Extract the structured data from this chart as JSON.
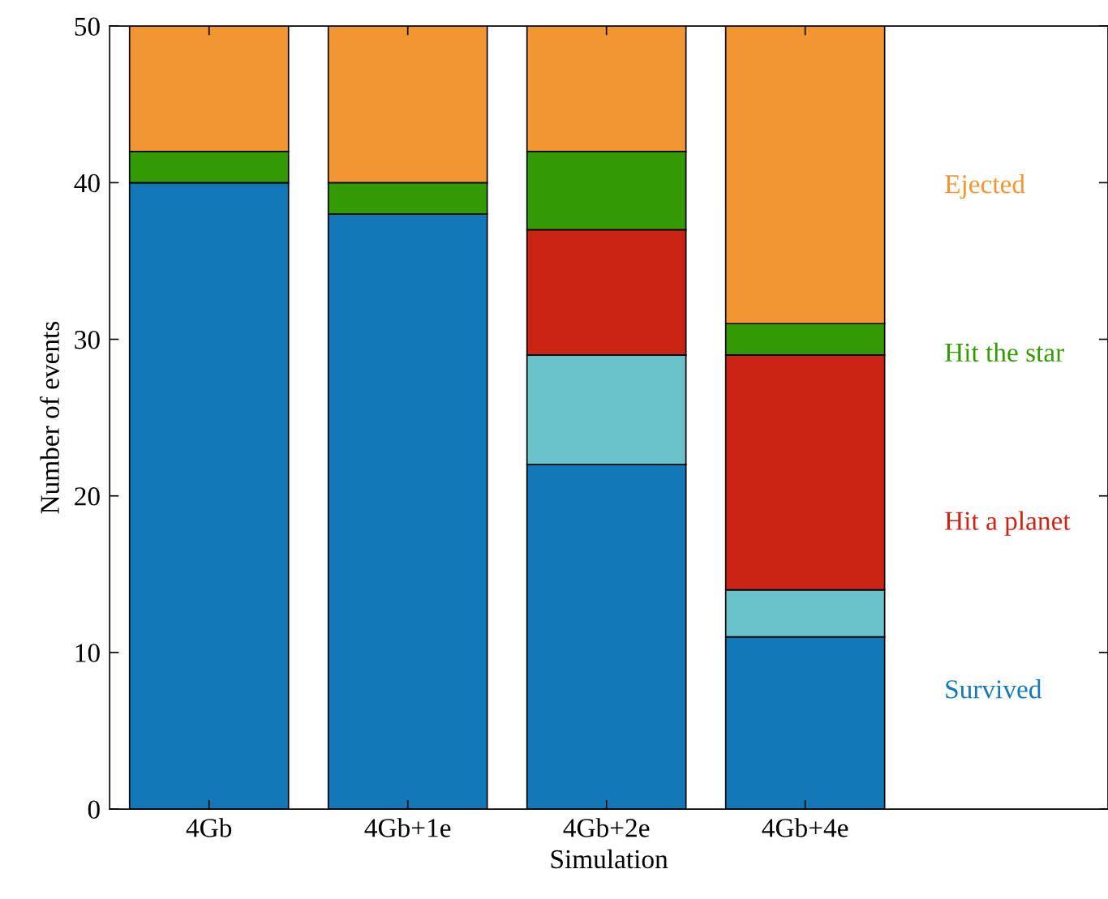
{
  "chart_data": {
    "type": "bar",
    "stacked": true,
    "xlabel": "Simulation",
    "ylabel": "Number of events",
    "categories": [
      "4Gb",
      "4Gb+1e",
      "4Gb+2e",
      "4Gb+4e"
    ],
    "series": [
      {
        "name": "Survived",
        "color": "#1378b8",
        "values": [
          40,
          38,
          22,
          11
        ]
      },
      {
        "color": "#69c2c9",
        "values": [
          0,
          0,
          7,
          3
        ]
      },
      {
        "name": "Hit a planet",
        "color": "#cb2414",
        "values": [
          0,
          0,
          8,
          15
        ]
      },
      {
        "name": "Hit the star",
        "color": "#349a04",
        "values": [
          2,
          2,
          5,
          2
        ]
      },
      {
        "name": "Ejected",
        "color": "#f29633",
        "values": [
          8,
          10,
          8,
          19
        ]
      }
    ],
    "ylim": [
      0,
      50
    ],
    "yticks": [
      0,
      10,
      20,
      30,
      40,
      50
    ],
    "grid": false
  }
}
